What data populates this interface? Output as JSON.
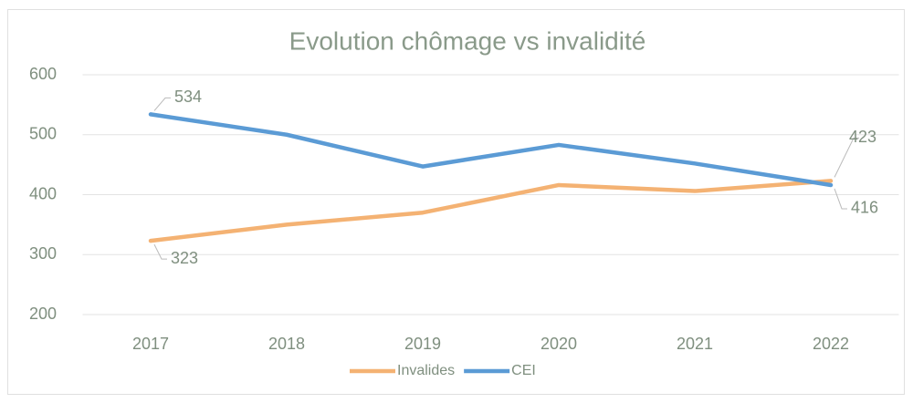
{
  "chart_data": {
    "type": "line",
    "title": "Evolution chômage vs invalidité",
    "categories": [
      "2017",
      "2018",
      "2019",
      "2020",
      "2021",
      "2022"
    ],
    "series": [
      {
        "name": "Invalides",
        "color": "#f4b273",
        "values": [
          323,
          350,
          370,
          416,
          406,
          423
        ]
      },
      {
        "name": "CEI",
        "color": "#5b9bd5",
        "values": [
          534,
          500,
          447,
          483,
          452,
          416
        ]
      }
    ],
    "ylim": [
      200,
      600
    ],
    "yticks": [
      200,
      300,
      400,
      500,
      600
    ],
    "grid": true,
    "legend": "bottom"
  }
}
